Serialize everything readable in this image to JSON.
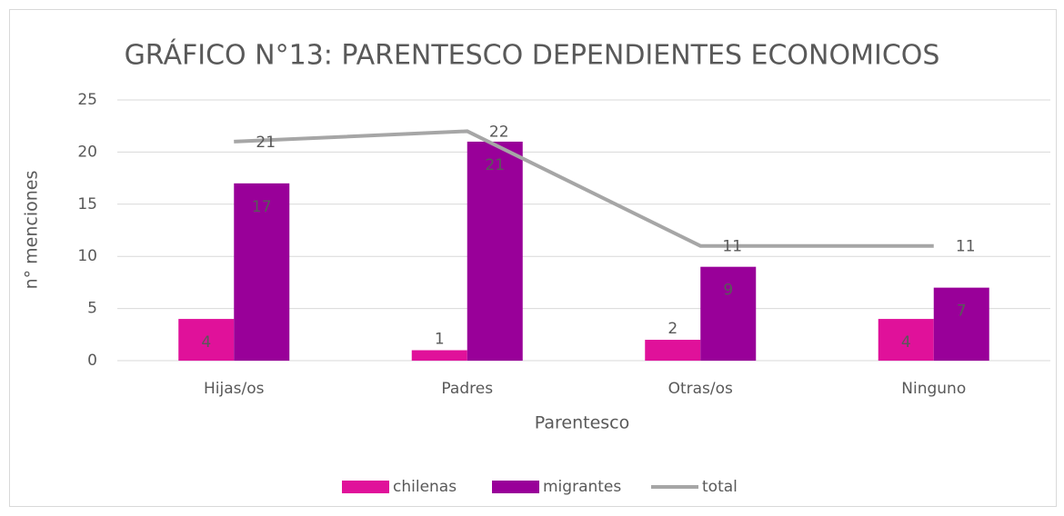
{
  "chart_data": {
    "type": "bar",
    "title": "GRÁFICO N°13: PARENTESCO DEPENDIENTES ECONOMICOS",
    "x_label": "Parentesco",
    "y_label": "n° menciones",
    "categories": [
      "Hijas/os",
      "Padres",
      "Otras/os",
      "Ninguno"
    ],
    "series": [
      {
        "name": "chilenas",
        "type": "bar",
        "color": "#e0119a",
        "values": [
          4,
          1,
          2,
          4
        ]
      },
      {
        "name": "migrantes",
        "type": "bar",
        "color": "#990099",
        "values": [
          17,
          21,
          9,
          7
        ]
      },
      {
        "name": "total",
        "type": "line",
        "color": "#a6a6a6",
        "values": [
          21,
          22,
          11,
          11
        ]
      }
    ],
    "ylim": [
      0,
      25
    ],
    "yticks": [
      0,
      5,
      10,
      15,
      20,
      25
    ],
    "grid": true,
    "legend": "bottom"
  }
}
